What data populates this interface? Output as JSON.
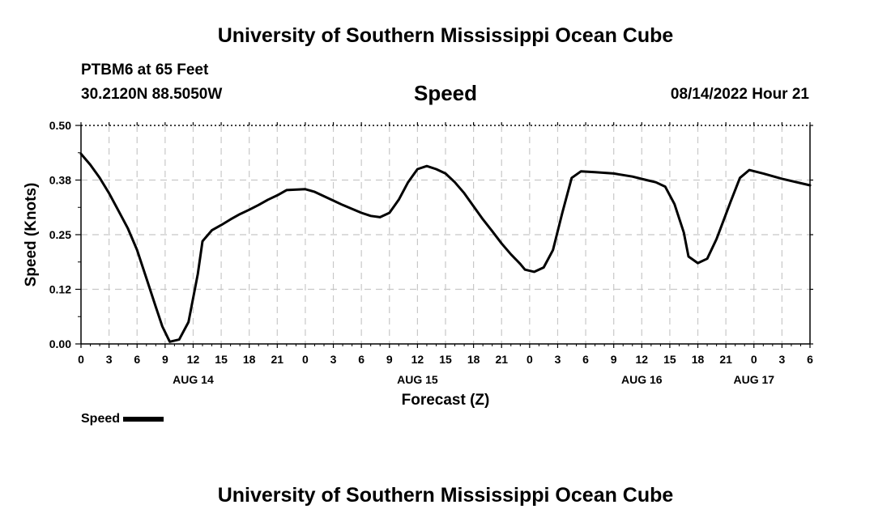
{
  "header": {
    "title": "University of Southern Mississippi Ocean Cube",
    "station": "PTBM6 at 65 Feet",
    "coords": "30.2120N  88.5050W",
    "chart_title": "Speed",
    "datetime": "08/14/2022 Hour 21"
  },
  "footer": {
    "title": "University of Southern Mississippi Ocean Cube"
  },
  "legend": {
    "label": "Speed"
  },
  "colors": {
    "line": "#000000",
    "grid": "#c8c8c8",
    "background": "#ffffff"
  },
  "chart_data": {
    "type": "line",
    "title": "Speed",
    "xlabel": "Forecast (Z)",
    "ylabel": "Speed (Knots)",
    "ylim": [
      0,
      0.5
    ],
    "yticks": [
      0.0,
      0.125,
      0.25,
      0.375,
      0.5
    ],
    "ytick_labels": [
      "0.00",
      "0.12",
      "0.25",
      "0.38",
      "0.50"
    ],
    "xlim_hours_from_aug14_00z": [
      0,
      78
    ],
    "xtick_hours": [
      0,
      3,
      6,
      9,
      12,
      15,
      18,
      21,
      24,
      27,
      30,
      33,
      36,
      39,
      42,
      45,
      48,
      51,
      54,
      57,
      60,
      63,
      66,
      69,
      72,
      75,
      78
    ],
    "xtick_labels": [
      "0",
      "3",
      "6",
      "9",
      "12",
      "15",
      "18",
      "21",
      "0",
      "3",
      "6",
      "9",
      "12",
      "15",
      "18",
      "21",
      "0",
      "3",
      "6",
      "9",
      "12",
      "15",
      "18",
      "21",
      "0",
      "3",
      "6"
    ],
    "date_labels": [
      {
        "hour": 12,
        "label": "AUG 14"
      },
      {
        "hour": 36,
        "label": "AUG 15"
      },
      {
        "hour": 60,
        "label": "AUG 16"
      },
      {
        "hour": 72,
        "label": "AUG 17"
      }
    ],
    "grid": true,
    "legend_position": "bottom-left",
    "series": [
      {
        "name": "Speed",
        "x": [
          0,
          1,
          2,
          3,
          4,
          5,
          6,
          7,
          8,
          8.7,
          9.5,
          10.5,
          11.5,
          12.5,
          13,
          14,
          15,
          16,
          17,
          18,
          19,
          20,
          21,
          22,
          24,
          25,
          26,
          27,
          28,
          29,
          30,
          31,
          32,
          33,
          34,
          35,
          36,
          37,
          38,
          39,
          40,
          41,
          42,
          43,
          44,
          45,
          46,
          47,
          47.5,
          48.5,
          49.5,
          50.5,
          51.5,
          52.5,
          53.5,
          55,
          57,
          59,
          60.5,
          61.5,
          62.5,
          63.5,
          64.5,
          65,
          66,
          67,
          68,
          69.5,
          70.5,
          71.5,
          73,
          75,
          78
        ],
        "y": [
          0.435,
          0.41,
          0.38,
          0.345,
          0.305,
          0.265,
          0.215,
          0.15,
          0.085,
          0.04,
          0.005,
          0.01,
          0.05,
          0.16,
          0.235,
          0.26,
          0.272,
          0.285,
          0.297,
          0.307,
          0.318,
          0.33,
          0.34,
          0.352,
          0.354,
          0.348,
          0.338,
          0.328,
          0.318,
          0.309,
          0.3,
          0.293,
          0.29,
          0.3,
          0.33,
          0.37,
          0.4,
          0.407,
          0.4,
          0.39,
          0.37,
          0.345,
          0.315,
          0.285,
          0.258,
          0.23,
          0.205,
          0.183,
          0.17,
          0.165,
          0.175,
          0.215,
          0.3,
          0.38,
          0.395,
          0.393,
          0.39,
          0.383,
          0.375,
          0.37,
          0.36,
          0.32,
          0.255,
          0.2,
          0.185,
          0.195,
          0.24,
          0.325,
          0.38,
          0.398,
          0.39,
          0.378,
          0.363
        ]
      }
    ]
  }
}
